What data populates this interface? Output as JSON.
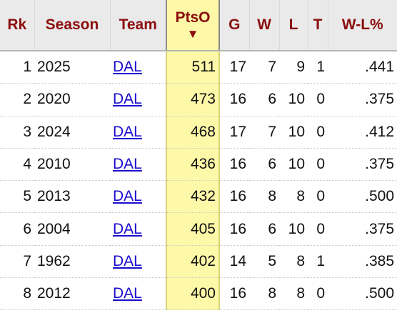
{
  "table": {
    "headers": {
      "rk": "Rk",
      "season": "Season",
      "team": "Team",
      "ptso": "PtsO",
      "ptso_sort": "▼",
      "g": "G",
      "w": "W",
      "l": "L",
      "t": "T",
      "wl": "W-L%"
    },
    "rows": [
      {
        "rk": "1",
        "season": "2025",
        "team": "DAL",
        "ptso": "511",
        "g": "17",
        "w": "7",
        "l": "9",
        "t": "1",
        "wl": ".441"
      },
      {
        "rk": "2",
        "season": "2020",
        "team": "DAL",
        "ptso": "473",
        "g": "16",
        "w": "6",
        "l": "10",
        "t": "0",
        "wl": ".375"
      },
      {
        "rk": "3",
        "season": "2024",
        "team": "DAL",
        "ptso": "468",
        "g": "17",
        "w": "7",
        "l": "10",
        "t": "0",
        "wl": ".412"
      },
      {
        "rk": "4",
        "season": "2010",
        "team": "DAL",
        "ptso": "436",
        "g": "16",
        "w": "6",
        "l": "10",
        "t": "0",
        "wl": ".375"
      },
      {
        "rk": "5",
        "season": "2013",
        "team": "DAL",
        "ptso": "432",
        "g": "16",
        "w": "8",
        "l": "8",
        "t": "0",
        "wl": ".500"
      },
      {
        "rk": "6",
        "season": "2004",
        "team": "DAL",
        "ptso": "405",
        "g": "16",
        "w": "6",
        "l": "10",
        "t": "0",
        "wl": ".375"
      },
      {
        "rk": "7",
        "season": "1962",
        "team": "DAL",
        "ptso": "402",
        "g": "14",
        "w": "5",
        "l": "8",
        "t": "1",
        "wl": ".385"
      },
      {
        "rk": "8",
        "season": "2012",
        "team": "DAL",
        "ptso": "400",
        "g": "16",
        "w": "8",
        "l": "8",
        "t": "0",
        "wl": ".500"
      }
    ]
  },
  "colors": {
    "header_text": "#8b0d0d",
    "header_bg": "#eaeaea",
    "sorted_column_bg": "#fef9a8",
    "link": "#1a0dcf"
  }
}
